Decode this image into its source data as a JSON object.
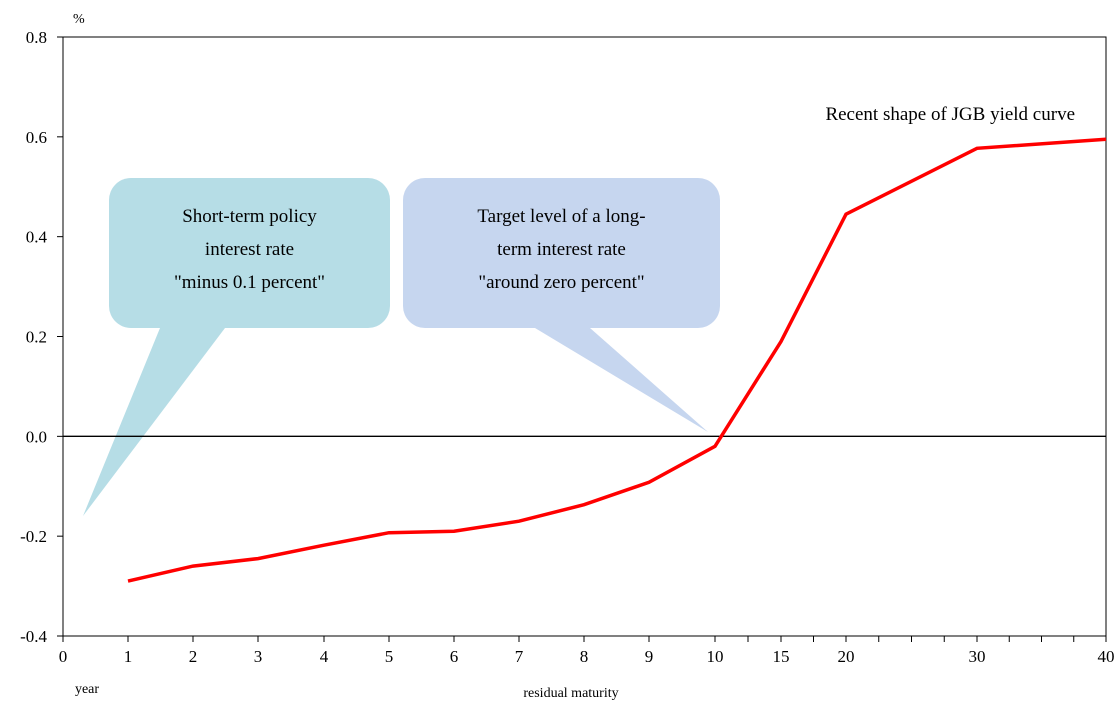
{
  "chart_data": {
    "type": "line",
    "ylabel": "%",
    "xlabel": "residual maturity",
    "x_unit_label": "year",
    "ylim": [
      -0.4,
      0.8
    ],
    "y_ticks": [
      "-0.4",
      "-0.2",
      "0.0",
      "0.2",
      "0.4",
      "0.6",
      "0.8"
    ],
    "y_tick_values": [
      -0.4,
      -0.2,
      0.0,
      0.2,
      0.4,
      0.6,
      0.8
    ],
    "x_ticks": [
      "0",
      "1",
      "2",
      "3",
      "4",
      "5",
      "6",
      "7",
      "8",
      "9",
      "10",
      "15",
      "20",
      "30",
      "40"
    ],
    "grid": false,
    "series": [
      {
        "name": "Recent shape of JGB yield curve",
        "color": "#ff0000",
        "x": [
          1,
          2,
          3,
          4,
          5,
          6,
          7,
          8,
          9,
          10,
          15,
          20,
          30,
          40
        ],
        "values": [
          -0.29,
          -0.26,
          -0.245,
          -0.218,
          -0.193,
          -0.19,
          -0.17,
          -0.137,
          -0.092,
          -0.02,
          0.19,
          0.445,
          0.577,
          0.595
        ]
      }
    ],
    "annotations": [
      {
        "id": "short-term",
        "lines": [
          "Short-term policy",
          "interest rate",
          "\"minus 0.1 percent\""
        ],
        "fill": "#b6dde6"
      },
      {
        "id": "long-term",
        "lines": [
          "Target level of a long-",
          "term interest rate",
          "\"around zero percent\""
        ],
        "fill": "#c6d6ef"
      }
    ]
  }
}
